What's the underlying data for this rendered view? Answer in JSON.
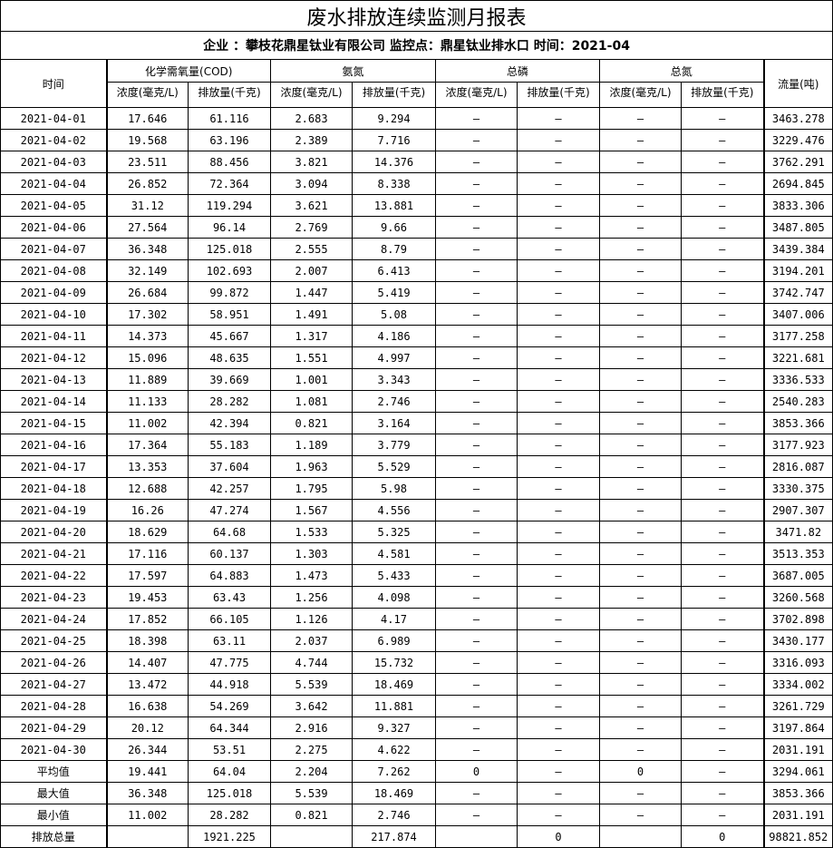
{
  "title": "废水排放连续监测月报表",
  "subtitle": "企业 ：攀枝花鼎星钛业有限公司 监控点：鼎星钛业排水口 时间：2021-04",
  "headers": {
    "time": "时间",
    "cod": "化学需氧量(COD)",
    "ammonia": "氨氮",
    "phosphorus": "总磷",
    "nitrogen": "总氮",
    "flow": "流量(吨)",
    "concentration": "浓度(毫克/L)",
    "emission": "排放量(千克)"
  },
  "rows": [
    [
      "2021-04-01",
      "17.646",
      "61.116",
      "2.683",
      "9.294",
      "–",
      "–",
      "–",
      "–",
      "3463.278"
    ],
    [
      "2021-04-02",
      "19.568",
      "63.196",
      "2.389",
      "7.716",
      "–",
      "–",
      "–",
      "–",
      "3229.476"
    ],
    [
      "2021-04-03",
      "23.511",
      "88.456",
      "3.821",
      "14.376",
      "–",
      "–",
      "–",
      "–",
      "3762.291"
    ],
    [
      "2021-04-04",
      "26.852",
      "72.364",
      "3.094",
      "8.338",
      "–",
      "–",
      "–",
      "–",
      "2694.845"
    ],
    [
      "2021-04-05",
      "31.12",
      "119.294",
      "3.621",
      "13.881",
      "–",
      "–",
      "–",
      "–",
      "3833.306"
    ],
    [
      "2021-04-06",
      "27.564",
      "96.14",
      "2.769",
      "9.66",
      "–",
      "–",
      "–",
      "–",
      "3487.805"
    ],
    [
      "2021-04-07",
      "36.348",
      "125.018",
      "2.555",
      "8.79",
      "–",
      "–",
      "–",
      "–",
      "3439.384"
    ],
    [
      "2021-04-08",
      "32.149",
      "102.693",
      "2.007",
      "6.413",
      "–",
      "–",
      "–",
      "–",
      "3194.201"
    ],
    [
      "2021-04-09",
      "26.684",
      "99.872",
      "1.447",
      "5.419",
      "–",
      "–",
      "–",
      "–",
      "3742.747"
    ],
    [
      "2021-04-10",
      "17.302",
      "58.951",
      "1.491",
      "5.08",
      "–",
      "–",
      "–",
      "–",
      "3407.006"
    ],
    [
      "2021-04-11",
      "14.373",
      "45.667",
      "1.317",
      "4.186",
      "–",
      "–",
      "–",
      "–",
      "3177.258"
    ],
    [
      "2021-04-12",
      "15.096",
      "48.635",
      "1.551",
      "4.997",
      "–",
      "–",
      "–",
      "–",
      "3221.681"
    ],
    [
      "2021-04-13",
      "11.889",
      "39.669",
      "1.001",
      "3.343",
      "–",
      "–",
      "–",
      "–",
      "3336.533"
    ],
    [
      "2021-04-14",
      "11.133",
      "28.282",
      "1.081",
      "2.746",
      "–",
      "–",
      "–",
      "–",
      "2540.283"
    ],
    [
      "2021-04-15",
      "11.002",
      "42.394",
      "0.821",
      "3.164",
      "–",
      "–",
      "–",
      "–",
      "3853.366"
    ],
    [
      "2021-04-16",
      "17.364",
      "55.183",
      "1.189",
      "3.779",
      "–",
      "–",
      "–",
      "–",
      "3177.923"
    ],
    [
      "2021-04-17",
      "13.353",
      "37.604",
      "1.963",
      "5.529",
      "–",
      "–",
      "–",
      "–",
      "2816.087"
    ],
    [
      "2021-04-18",
      "12.688",
      "42.257",
      "1.795",
      "5.98",
      "–",
      "–",
      "–",
      "–",
      "3330.375"
    ],
    [
      "2021-04-19",
      "16.26",
      "47.274",
      "1.567",
      "4.556",
      "–",
      "–",
      "–",
      "–",
      "2907.307"
    ],
    [
      "2021-04-20",
      "18.629",
      "64.68",
      "1.533",
      "5.325",
      "–",
      "–",
      "–",
      "–",
      "3471.82"
    ],
    [
      "2021-04-21",
      "17.116",
      "60.137",
      "1.303",
      "4.581",
      "–",
      "–",
      "–",
      "–",
      "3513.353"
    ],
    [
      "2021-04-22",
      "17.597",
      "64.883",
      "1.473",
      "5.433",
      "–",
      "–",
      "–",
      "–",
      "3687.005"
    ],
    [
      "2021-04-23",
      "19.453",
      "63.43",
      "1.256",
      "4.098",
      "–",
      "–",
      "–",
      "–",
      "3260.568"
    ],
    [
      "2021-04-24",
      "17.852",
      "66.105",
      "1.126",
      "4.17",
      "–",
      "–",
      "–",
      "–",
      "3702.898"
    ],
    [
      "2021-04-25",
      "18.398",
      "63.11",
      "2.037",
      "6.989",
      "–",
      "–",
      "–",
      "–",
      "3430.177"
    ],
    [
      "2021-04-26",
      "14.407",
      "47.775",
      "4.744",
      "15.732",
      "–",
      "–",
      "–",
      "–",
      "3316.093"
    ],
    [
      "2021-04-27",
      "13.472",
      "44.918",
      "5.539",
      "18.469",
      "–",
      "–",
      "–",
      "–",
      "3334.002"
    ],
    [
      "2021-04-28",
      "16.638",
      "54.269",
      "3.642",
      "11.881",
      "–",
      "–",
      "–",
      "–",
      "3261.729"
    ],
    [
      "2021-04-29",
      "20.12",
      "64.344",
      "2.916",
      "9.327",
      "–",
      "–",
      "–",
      "–",
      "3197.864"
    ],
    [
      "2021-04-30",
      "26.344",
      "53.51",
      "2.275",
      "4.622",
      "–",
      "–",
      "–",
      "–",
      "2031.191"
    ]
  ],
  "summary": [
    [
      "平均值",
      "19.441",
      "64.04",
      "2.204",
      "7.262",
      "0",
      "–",
      "0",
      "–",
      "3294.061"
    ],
    [
      "最大值",
      "36.348",
      "125.018",
      "5.539",
      "18.469",
      "–",
      "–",
      "–",
      "–",
      "3853.366"
    ],
    [
      "最小值",
      "11.002",
      "28.282",
      "0.821",
      "2.746",
      "–",
      "–",
      "–",
      "–",
      "2031.191"
    ],
    [
      "排放总量",
      "",
      "1921.225",
      "",
      "217.874",
      "",
      "0",
      "",
      "0",
      "98821.852"
    ]
  ]
}
